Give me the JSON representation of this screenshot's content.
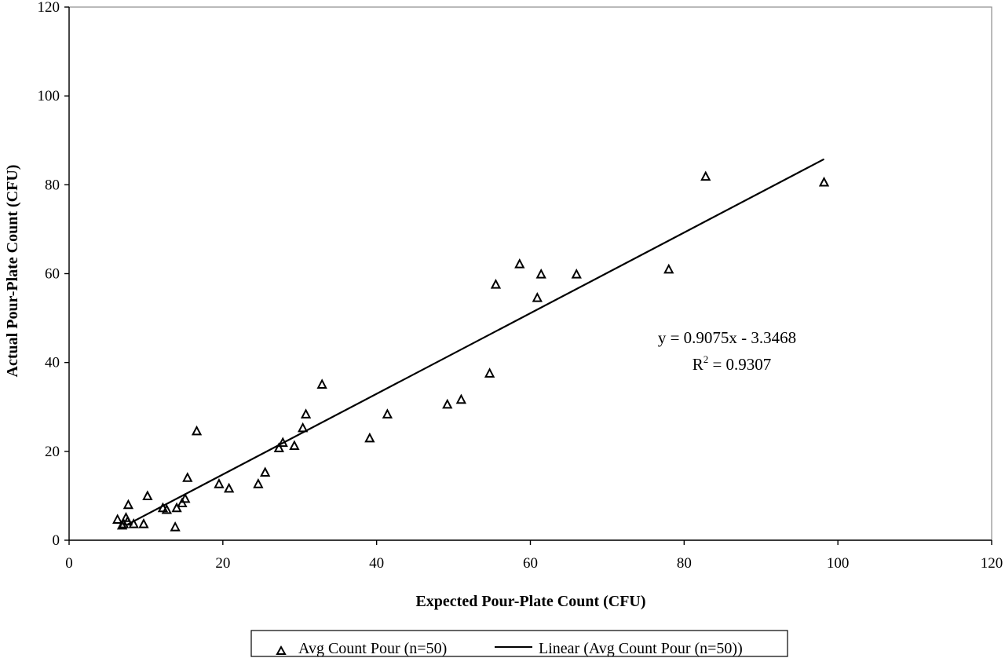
{
  "chart_data": {
    "type": "scatter",
    "xlabel": "Expected Pour-Plate Count (CFU)",
    "ylabel": "Actual Pour-Plate Count (CFU)",
    "xlim": [
      0,
      120
    ],
    "ylim": [
      0,
      120
    ],
    "x_ticks": [
      "0",
      "20",
      "40",
      "60",
      "80",
      "100",
      "120"
    ],
    "y_ticks": [
      "0",
      "20",
      "40",
      "60",
      "80",
      "100",
      "120"
    ],
    "grid": false,
    "legend_position": "bottom",
    "series": [
      {
        "name": "Avg Count Pour (n=50)",
        "marker": "triangle-open",
        "color": "#000000",
        "points": [
          [
            6.3,
            4.6
          ],
          [
            6.9,
            3.3
          ],
          [
            7.1,
            3.6
          ],
          [
            7.4,
            5.0
          ],
          [
            7.6,
            4.2
          ],
          [
            7.7,
            7.9
          ],
          [
            8.4,
            3.6
          ],
          [
            9.7,
            3.6
          ],
          [
            10.2,
            9.9
          ],
          [
            12.2,
            7.2
          ],
          [
            12.7,
            6.8
          ],
          [
            13.8,
            2.9
          ],
          [
            14.0,
            7.2
          ],
          [
            14.7,
            8.3
          ],
          [
            15.1,
            9.3
          ],
          [
            15.4,
            14.0
          ],
          [
            16.6,
            24.5
          ],
          [
            19.5,
            12.6
          ],
          [
            20.8,
            11.6
          ],
          [
            24.6,
            12.6
          ],
          [
            25.5,
            15.2
          ],
          [
            27.3,
            20.7
          ],
          [
            27.8,
            21.9
          ],
          [
            29.3,
            21.2
          ],
          [
            30.4,
            25.2
          ],
          [
            30.8,
            28.3
          ],
          [
            32.9,
            35.0
          ],
          [
            39.1,
            22.9
          ],
          [
            41.4,
            28.3
          ],
          [
            49.2,
            30.5
          ],
          [
            51.0,
            31.6
          ],
          [
            54.7,
            37.5
          ],
          [
            55.5,
            57.5
          ],
          [
            58.6,
            62.1
          ],
          [
            60.9,
            54.5
          ],
          [
            61.4,
            59.8
          ],
          [
            66.0,
            59.8
          ],
          [
            78.0,
            60.9
          ],
          [
            82.8,
            81.8
          ],
          [
            98.2,
            80.5
          ]
        ]
      },
      {
        "name": "Linear (Avg Count Pour (n=50))",
        "type": "line",
        "color": "#000000",
        "slope": 0.9075,
        "intercept": -3.3468,
        "x_range": [
          7.6,
          98.2
        ]
      }
    ],
    "annotations": {
      "equation": "y = 0.9075x - 3.3468",
      "r2_prefix": "R",
      "r2_sup": "2",
      "r2_value": " = 0.9307"
    }
  }
}
